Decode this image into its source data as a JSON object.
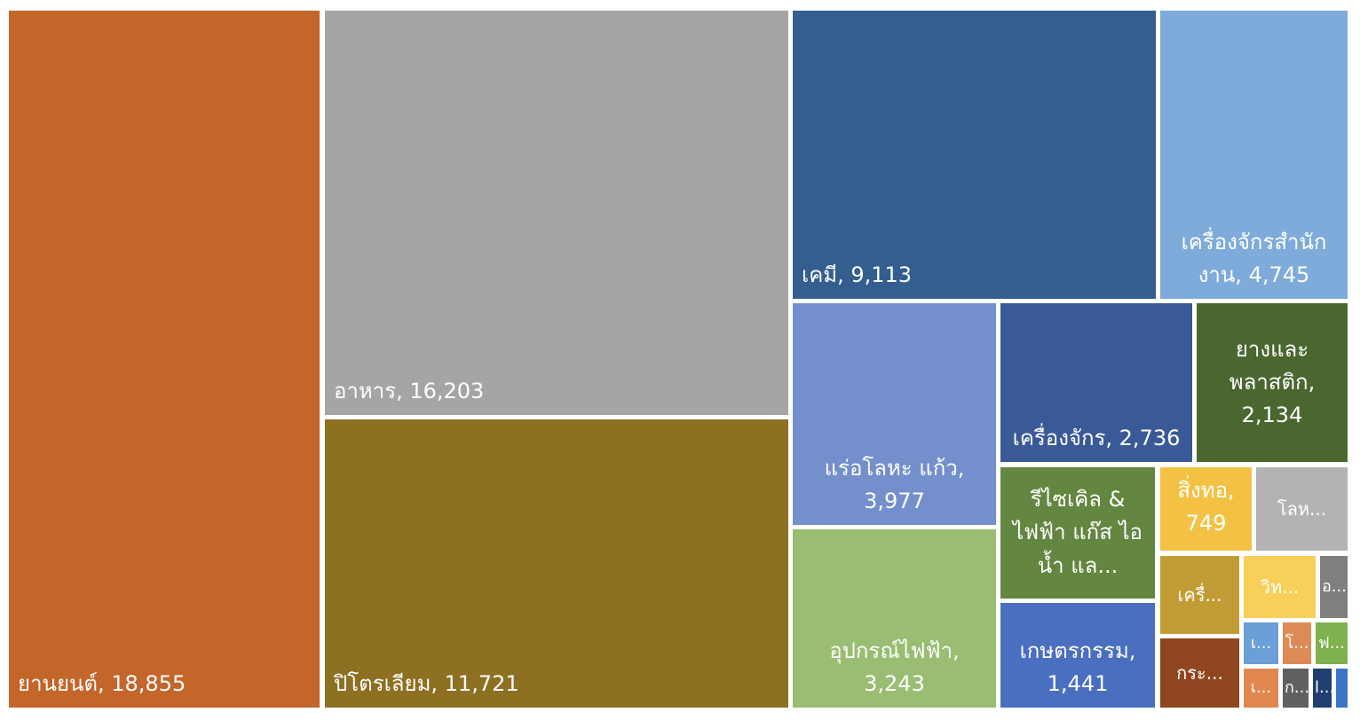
{
  "chart_data": {
    "type": "treemap",
    "title": "",
    "items": [
      {
        "name": "ยานยนต์",
        "label": "ยานยนต์,  18,855",
        "value": 18855,
        "color": "#c4652a"
      },
      {
        "name": "อาหาร",
        "label": "อาหาร,  16,203",
        "value": 16203,
        "color": "#a5a5a5"
      },
      {
        "name": "ปิโตรเลียม",
        "label": "ปิโตรเลียม,  11,721",
        "value": 11721,
        "color": "#8e7022"
      },
      {
        "name": "เคมี",
        "label": "เคมี,  9,113",
        "value": 9113,
        "color": "#335e8f"
      },
      {
        "name": "เครื่องจักรสำนักงาน",
        "label": "เครื่องจักรสำนัก งาน,  4,745",
        "value": 4745,
        "color": "#7eabd9"
      },
      {
        "name": "แร่อโลหะ แก้ว",
        "label": "แร่อโลหะ แก้ว, 3,977",
        "value": 3977,
        "color": "#738fcc"
      },
      {
        "name": "อุปกรณ์ไฟฟ้า",
        "label": "อุปกรณ์ไฟฟ้า, 3,243",
        "value": 3243,
        "color": "#99bd72"
      },
      {
        "name": "เครื่องจักร",
        "label": "เครื่องจักร, 2,736",
        "value": 2736,
        "color": "#3a5997"
      },
      {
        "name": "ยางและพลาสติก",
        "label": "ยางและ พลาสติก, 2,134",
        "value": 2134,
        "color": "#4b6730"
      },
      {
        "name": "รีไซเคิล & ไฟฟ้า แก๊ส ไอน้ำ และ...",
        "label": "รีไซเคิล & ไฟฟ้า แก๊ส ไอ น้ำ แล...",
        "value": null,
        "color": "#638640"
      },
      {
        "name": "เกษตรกรรม",
        "label": "เกษตรกรรม, 1,441",
        "value": 1441,
        "color": "#4a6fc0"
      },
      {
        "name": "สิ่งทอ",
        "label": "สิ่งทอ, 749",
        "value": 749,
        "color": "#f3c244"
      },
      {
        "name": "โลห...",
        "label": "โลห...",
        "value": null,
        "color": "#b3b3b3"
      },
      {
        "name": "เครื่...",
        "label": "เครื่...",
        "value": null,
        "color": "#c29d35"
      },
      {
        "name": "วิท...",
        "label": "วิท...",
        "value": null,
        "color": "#f7cf59"
      },
      {
        "name": "อ...",
        "label": "อ...",
        "value": null,
        "color": "#7f7f7f"
      },
      {
        "name": "กระ...",
        "label": "กระ...",
        "value": null,
        "color": "#8f461f"
      },
      {
        "name": "เ...",
        "label": "เ...",
        "value": null,
        "color": "#6a9fd7"
      },
      {
        "name": "โ...",
        "label": "โ...",
        "value": null,
        "color": "#de8a55"
      },
      {
        "name": "ฟ...",
        "label": "ฟ...",
        "value": null,
        "color": "#7db24e"
      },
      {
        "name": "เ...",
        "label": "เ...",
        "value": null,
        "color": "#e0874f"
      },
      {
        "name": "ก...",
        "label": "ก...",
        "value": null,
        "color": "#606060"
      },
      {
        "name": "l...",
        "label": "l...",
        "value": null,
        "color": "#1f3f70"
      },
      {
        "name": "",
        "label": "",
        "value": null,
        "color": "#3b75c6"
      }
    ]
  }
}
